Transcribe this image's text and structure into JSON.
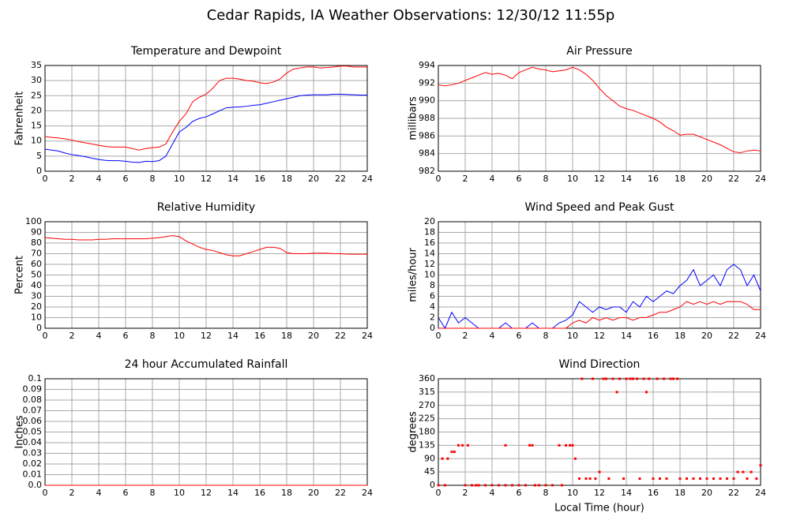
{
  "title": "Cedar Rapids, IA Weather Observations: 12/30/12 11:55p",
  "chart_data": [
    {
      "type": "line",
      "title": "Temperature and Dewpoint",
      "ylabel": "Fahrenheit",
      "x": [
        0,
        0.5,
        1,
        1.5,
        2,
        2.5,
        3,
        3.5,
        4,
        4.5,
        5,
        5.5,
        6,
        6.5,
        7,
        7.5,
        8,
        8.5,
        9,
        9.5,
        10,
        10.5,
        11,
        11.5,
        12,
        12.5,
        13,
        13.5,
        14,
        14.5,
        15,
        15.5,
        16,
        16.5,
        17,
        17.5,
        18,
        18.5,
        19,
        19.5,
        20,
        20.5,
        21,
        21.5,
        22,
        22.5,
        23,
        23.5,
        24
      ],
      "series": [
        {
          "color": "#ff0000",
          "values": [
            11.5,
            11.2,
            11,
            10.7,
            10.3,
            9.8,
            9.4,
            9,
            8.6,
            8.2,
            8,
            8,
            8,
            7.5,
            7,
            7.5,
            7.8,
            8,
            9,
            13,
            16.5,
            19,
            23,
            24.5,
            25.5,
            27.5,
            30,
            30.8,
            30.8,
            30.5,
            30,
            29.8,
            29.3,
            29,
            29.5,
            30.5,
            32.5,
            33.8,
            34.2,
            34.5,
            34.5,
            34.2,
            34.3,
            34.5,
            34.8,
            34.8,
            34.5,
            34.5,
            34.5
          ]
        },
        {
          "color": "#0000ff",
          "values": [
            7.3,
            7,
            6.7,
            6,
            5.5,
            5.2,
            4.8,
            4.3,
            3.9,
            3.6,
            3.5,
            3.5,
            3.3,
            3,
            2.9,
            3.3,
            3.2,
            3.5,
            5,
            9,
            13,
            14.5,
            16.5,
            17.5,
            18,
            19,
            20,
            21,
            21.2,
            21.3,
            21.5,
            21.8,
            22,
            22.5,
            23,
            23.5,
            24,
            24.5,
            25,
            25.2,
            25.3,
            25.3,
            25.3,
            25.5,
            25.5,
            25.4,
            25.3,
            25.2,
            25.2
          ]
        }
      ],
      "xlim": [
        0,
        24
      ],
      "xticks": [
        0,
        2,
        4,
        6,
        8,
        10,
        12,
        14,
        16,
        18,
        20,
        22,
        24
      ],
      "ylim": [
        0,
        35
      ],
      "yticks": [
        0,
        5,
        10,
        15,
        20,
        25,
        30,
        35
      ],
      "grid": true
    },
    {
      "type": "line",
      "title": "Air Pressure",
      "ylabel": "millibars",
      "x": [
        0,
        0.5,
        1,
        1.5,
        2,
        2.5,
        3,
        3.5,
        4,
        4.5,
        5,
        5.5,
        6,
        6.5,
        7,
        7.5,
        8,
        8.5,
        9,
        9.5,
        10,
        10.5,
        11,
        11.5,
        12,
        12.5,
        13,
        13.5,
        14,
        14.5,
        15,
        15.5,
        16,
        16.5,
        17,
        17.5,
        18,
        18.5,
        19,
        19.5,
        20,
        20.5,
        21,
        21.5,
        22,
        22.5,
        23,
        23.5,
        24
      ],
      "series": [
        {
          "color": "#ff0000",
          "values": [
            991.8,
            991.7,
            991.8,
            992,
            992.3,
            992.6,
            992.9,
            993.2,
            993,
            993.1,
            992.9,
            992.5,
            993.2,
            993.5,
            993.8,
            993.6,
            993.5,
            993.3,
            993.4,
            993.5,
            993.8,
            993.5,
            993,
            992.3,
            991.4,
            990.6,
            990,
            989.4,
            989.1,
            988.9,
            988.6,
            988.3,
            988,
            987.6,
            987,
            986.6,
            986.1,
            986.2,
            986.2,
            985.9,
            985.6,
            985.3,
            985,
            984.6,
            984.2,
            984.1,
            984.3,
            984.4,
            984.3
          ]
        }
      ],
      "xlim": [
        0,
        24
      ],
      "xticks": [
        0,
        2,
        4,
        6,
        8,
        10,
        12,
        14,
        16,
        18,
        20,
        22,
        24
      ],
      "ylim": [
        982,
        994
      ],
      "yticks": [
        982,
        984,
        986,
        988,
        990,
        992,
        994
      ],
      "grid": true
    },
    {
      "type": "line",
      "title": "Relative Humidity",
      "ylabel": "Percent",
      "x": [
        0,
        0.5,
        1,
        1.5,
        2,
        2.5,
        3,
        3.5,
        4,
        4.5,
        5,
        5.5,
        6,
        6.5,
        7,
        7.5,
        8,
        8.5,
        9,
        9.5,
        10,
        10.5,
        11,
        11.5,
        12,
        12.5,
        13,
        13.5,
        14,
        14.5,
        15,
        15.5,
        16,
        16.5,
        17,
        17.5,
        18,
        18.5,
        19,
        19.5,
        20,
        20.5,
        21,
        21.5,
        22,
        22.5,
        23,
        23.5,
        24
      ],
      "series": [
        {
          "color": "#ff0000",
          "values": [
            85,
            84.5,
            84,
            83.5,
            83.5,
            83,
            83,
            83,
            83.5,
            83.5,
            84,
            84,
            84,
            84,
            84,
            84,
            84.5,
            85,
            86,
            87,
            86,
            82,
            79,
            76,
            74,
            73,
            71,
            69,
            68,
            68,
            70,
            72,
            74,
            76,
            76,
            75,
            71,
            70,
            70,
            70,
            70.5,
            70.5,
            70.5,
            70,
            70,
            69.5,
            69.5,
            69.5,
            69.5
          ]
        }
      ],
      "xlim": [
        0,
        24
      ],
      "xticks": [
        0,
        2,
        4,
        6,
        8,
        10,
        12,
        14,
        16,
        18,
        20,
        22,
        24
      ],
      "ylim": [
        0,
        100
      ],
      "yticks": [
        0,
        10,
        20,
        30,
        40,
        50,
        60,
        70,
        80,
        90,
        100
      ],
      "grid": true
    },
    {
      "type": "line",
      "title": "Wind Speed and Peak Gust",
      "ylabel": "miles/hour",
      "x": [
        0,
        0.5,
        1,
        1.5,
        2,
        2.5,
        3,
        3.5,
        4,
        4.5,
        5,
        5.5,
        6,
        6.5,
        7,
        7.5,
        8,
        8.5,
        9,
        9.5,
        10,
        10.5,
        11,
        11.5,
        12,
        12.5,
        13,
        13.5,
        14,
        14.5,
        15,
        15.5,
        16,
        16.5,
        17,
        17.5,
        18,
        18.5,
        19,
        19.5,
        20,
        20.5,
        21,
        21.5,
        22,
        22.5,
        23,
        23.5,
        24
      ],
      "series": [
        {
          "color": "#0000ff",
          "values": [
            2,
            0,
            3,
            1,
            2,
            1,
            0,
            0,
            0,
            0,
            1,
            0,
            0,
            0,
            1,
            0,
            0,
            0,
            1,
            1.5,
            2.5,
            5,
            4,
            3,
            4,
            3.5,
            4,
            4,
            3,
            5,
            4,
            6,
            5,
            6,
            7,
            6.5,
            8,
            9,
            11,
            8,
            9,
            10,
            8,
            11,
            12,
            11,
            8,
            10,
            7
          ]
        },
        {
          "color": "#ff0000",
          "values": [
            0,
            0,
            0,
            0,
            0,
            0,
            0,
            0,
            0,
            0,
            0,
            0,
            0,
            0,
            0,
            0,
            0,
            0,
            0,
            0,
            1,
            1.5,
            1,
            2,
            1.5,
            2,
            1.5,
            2,
            2,
            1.5,
            2,
            2,
            2.5,
            3,
            3,
            3.5,
            4,
            5,
            4.5,
            5,
            4.5,
            5,
            4.5,
            5,
            5,
            5,
            4.5,
            3.5,
            3.5
          ]
        }
      ],
      "xlim": [
        0,
        24
      ],
      "xticks": [
        0,
        2,
        4,
        6,
        8,
        10,
        12,
        14,
        16,
        18,
        20,
        22,
        24
      ],
      "ylim": [
        0,
        20
      ],
      "yticks": [
        0,
        2,
        4,
        6,
        8,
        10,
        12,
        14,
        16,
        18,
        20
      ],
      "grid": true
    },
    {
      "type": "line",
      "title": "24 hour Accumulated Rainfall",
      "ylabel": "Inches",
      "x": [
        0,
        24
      ],
      "series": [
        {
          "color": "#ff0000",
          "values": [
            0,
            0
          ]
        }
      ],
      "xlim": [
        0,
        24
      ],
      "xticks": [
        0,
        2,
        4,
        6,
        8,
        10,
        12,
        14,
        16,
        18,
        20,
        22,
        24
      ],
      "ylim": [
        0,
        0.1
      ],
      "yticks": [
        {
          "value": 0,
          "label": "0.0"
        },
        0.01,
        0.02,
        0.03,
        0.04,
        0.05,
        0.06,
        0.07,
        0.08,
        0.09,
        0.1
      ],
      "grid": true
    },
    {
      "type": "scatter",
      "title": "Wind Direction",
      "ylabel": "degrees",
      "xlabel": "Local Time (hour)",
      "x": [
        0,
        0.3,
        0.5,
        0.7,
        1,
        1.2,
        1.5,
        1.8,
        2,
        2.2,
        2.5,
        2.8,
        3,
        3.5,
        4,
        4.5,
        5,
        5,
        5.5,
        6,
        6.5,
        6.8,
        7,
        7.2,
        7.5,
        8,
        8.5,
        9,
        9.2,
        9.5,
        9.8,
        10,
        10.2,
        10.5,
        10.7,
        11,
        11.3,
        11.5,
        11.7,
        12,
        12.3,
        12.5,
        12.7,
        13,
        13.3,
        13.5,
        13.8,
        14,
        14.3,
        14.5,
        14.8,
        15,
        15.3,
        15.5,
        15.7,
        16,
        16.3,
        16.5,
        16.8,
        17,
        17.3,
        17.5,
        17.8,
        18,
        18.5,
        19,
        19.5,
        20,
        20.5,
        21,
        21.5,
        22,
        22.3,
        22.7,
        23,
        23.3,
        23.7,
        24
      ],
      "series": [
        {
          "color": "#ff0000",
          "values": [
            0,
            90,
            0,
            90,
            113,
            113,
            135,
            135,
            0,
            135,
            0,
            0,
            0,
            0,
            0,
            0,
            0,
            135,
            0,
            0,
            0,
            135,
            135,
            0,
            0,
            0,
            0,
            135,
            0,
            135,
            135,
            135,
            90,
            22.5,
            360,
            22.5,
            22.5,
            360,
            22.5,
            45,
            360,
            360,
            22.5,
            360,
            315,
            360,
            22.5,
            360,
            360,
            360,
            360,
            22.5,
            360,
            315,
            360,
            22.5,
            360,
            22.5,
            360,
            22.5,
            360,
            360,
            360,
            22.5,
            22.5,
            22.5,
            22.5,
            22.5,
            22.5,
            22.5,
            22.5,
            22.5,
            45,
            45,
            22.5,
            45,
            22.5,
            67.5
          ]
        }
      ],
      "xlim": [
        0,
        24
      ],
      "xticks": [
        0,
        2,
        4,
        6,
        8,
        10,
        12,
        14,
        16,
        18,
        20,
        22,
        24
      ],
      "ylim": [
        0,
        360
      ],
      "yticks": [
        0,
        45,
        90,
        135,
        180,
        225,
        270,
        315,
        360
      ],
      "grid": true
    }
  ]
}
